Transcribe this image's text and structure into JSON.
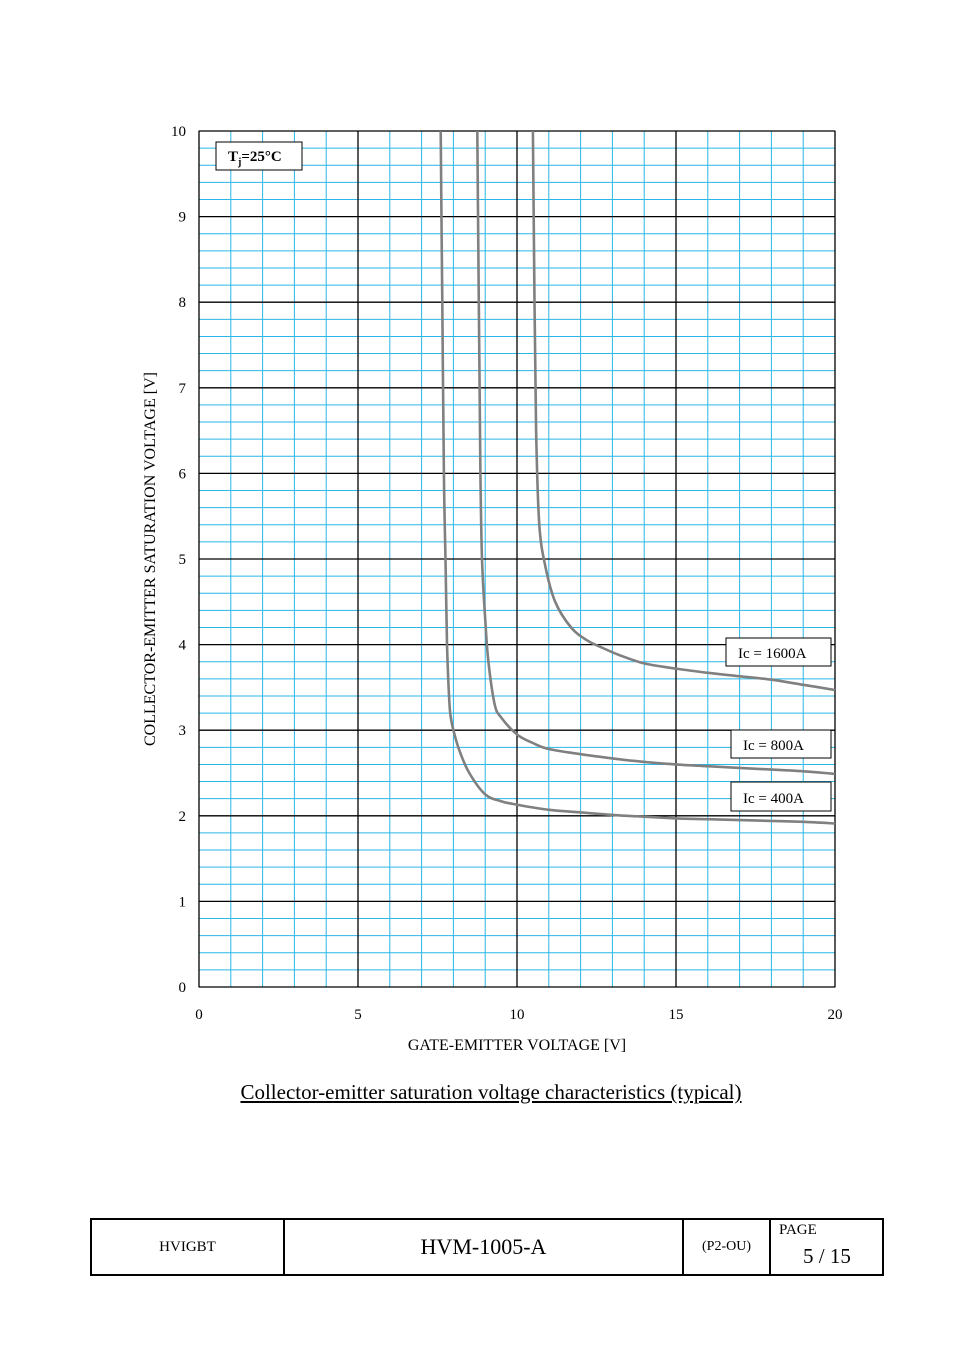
{
  "chart_data": {
    "type": "line",
    "title": "Collector-emitter saturation voltage characteristics (typical)",
    "xlabel": "GATE-EMITTER VOLTAGE [V]",
    "ylabel": "COLLECTOR-EMITTER SATURATION VOLTAGE [V]",
    "xlim": [
      0,
      20
    ],
    "ylim": [
      0,
      10
    ],
    "xticks": [
      0,
      5,
      10,
      15,
      20
    ],
    "yticks": [
      0,
      1,
      2,
      3,
      4,
      5,
      6,
      7,
      8,
      9,
      10
    ],
    "grid": true,
    "condition": {
      "main": "T",
      "sub": "j",
      "rest": "=25°C"
    },
    "series": [
      {
        "name": "Ic = 400A",
        "color": "#808080",
        "points": [
          [
            7.6,
            10
          ],
          [
            7.65,
            8
          ],
          [
            7.7,
            6
          ],
          [
            7.75,
            5
          ],
          [
            7.8,
            4
          ],
          [
            7.85,
            3.5
          ],
          [
            7.9,
            3.2
          ],
          [
            8.0,
            3.0
          ],
          [
            8.2,
            2.75
          ],
          [
            8.5,
            2.5
          ],
          [
            9.0,
            2.25
          ],
          [
            9.5,
            2.17
          ],
          [
            10.0,
            2.13
          ],
          [
            11.0,
            2.07
          ],
          [
            12.0,
            2.04
          ],
          [
            13.0,
            2.01
          ],
          [
            14.0,
            1.99
          ],
          [
            15.0,
            1.97
          ],
          [
            16.0,
            1.96
          ],
          [
            17.0,
            1.95
          ],
          [
            18.0,
            1.94
          ],
          [
            19.0,
            1.93
          ],
          [
            20.0,
            1.91
          ]
        ]
      },
      {
        "name": "Ic = 800A",
        "color": "#808080",
        "points": [
          [
            8.75,
            10
          ],
          [
            8.8,
            8
          ],
          [
            8.85,
            6
          ],
          [
            8.9,
            5
          ],
          [
            9.0,
            4.3
          ],
          [
            9.1,
            3.8
          ],
          [
            9.3,
            3.3
          ],
          [
            9.5,
            3.15
          ],
          [
            10.0,
            2.95
          ],
          [
            10.5,
            2.85
          ],
          [
            11.0,
            2.78
          ],
          [
            12.0,
            2.72
          ],
          [
            13.0,
            2.67
          ],
          [
            14.0,
            2.63
          ],
          [
            15.0,
            2.6
          ],
          [
            16.0,
            2.58
          ],
          [
            17.0,
            2.56
          ],
          [
            18.0,
            2.54
          ],
          [
            19.0,
            2.52
          ],
          [
            20.0,
            2.49
          ]
        ]
      },
      {
        "name": "Ic = 1600A",
        "color": "#808080",
        "points": [
          [
            10.5,
            10
          ],
          [
            10.55,
            8
          ],
          [
            10.6,
            6.5
          ],
          [
            10.7,
            5.4
          ],
          [
            10.9,
            4.9
          ],
          [
            11.2,
            4.5
          ],
          [
            11.7,
            4.2
          ],
          [
            12.2,
            4.05
          ],
          [
            12.7,
            3.96
          ],
          [
            13.2,
            3.88
          ],
          [
            14.0,
            3.78
          ],
          [
            15.0,
            3.72
          ],
          [
            16.0,
            3.67
          ],
          [
            17.0,
            3.63
          ],
          [
            18.0,
            3.59
          ],
          [
            19.0,
            3.53
          ],
          [
            20.0,
            3.47
          ]
        ]
      }
    ],
    "labels": [
      {
        "text": "Ic = 1600A"
      },
      {
        "text": "Ic = 800A"
      },
      {
        "text": "Ic = 400A"
      }
    ],
    "colors": {
      "grid_minor": "#29b6e8",
      "grid_major": "#000000",
      "curve": "#808080"
    }
  },
  "footer": {
    "product": "HVIGBT",
    "doc_no": "HVM-1005-A",
    "code": "(P2-OU)",
    "page_label": "PAGE",
    "page_num": "5 / 15"
  }
}
